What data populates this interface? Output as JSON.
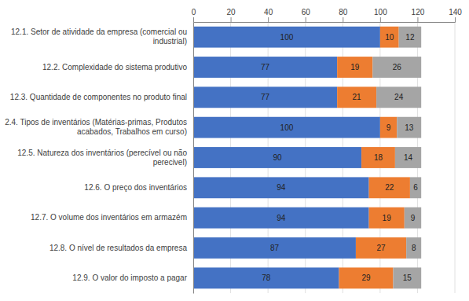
{
  "chart_data": {
    "type": "bar",
    "orientation": "horizontal",
    "stacked": true,
    "data_labels": true,
    "grid": true,
    "categories": [
      "12.1. Setor de atividade da empresa (comercial ou\n        industrial)",
      "12.2. Complexidade do sistema produtivo",
      "12.3. Quantidade de componentes no produto final",
      "2.4. Tipos de inventários (Matérias-primas, Produtos\n       acabados, Trabalhos em curso)",
      "12.5. Natureza dos inventários (perecível ou não\n        perecivel)",
      "12.6. O preço dos inventários",
      "12.7. O volume dos inventários em armazém",
      "12.8. O nível de resultados da empresa",
      "12.9. O valor do imposto a pagar"
    ],
    "series": [
      {
        "color": "#4472C4",
        "values": [
          100,
          77,
          77,
          100,
          90,
          94,
          94,
          87,
          78
        ]
      },
      {
        "color": "#ED7D31",
        "values": [
          10,
          19,
          21,
          9,
          18,
          22,
          19,
          27,
          29
        ]
      },
      {
        "color": "#A5A5A5",
        "values": [
          12,
          26,
          24,
          13,
          14,
          6,
          9,
          8,
          15
        ]
      }
    ],
    "xlim": [
      0,
      140
    ],
    "xticks": [
      0,
      20,
      40,
      60,
      80,
      100,
      120,
      140
    ]
  }
}
